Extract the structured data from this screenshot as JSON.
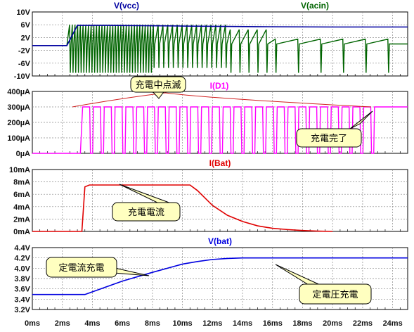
{
  "panels": [
    {
      "id": "voltage",
      "ylabels": [
        "10V",
        "6V",
        "2V",
        "-2V",
        "-6V",
        "-10V"
      ],
      "yticks": [
        10,
        6,
        2,
        -2,
        -6,
        -10
      ],
      "ylim": [
        -10,
        10
      ],
      "traces": [
        {
          "title": "V(vcc)",
          "color": "#0000a0"
        },
        {
          "title": "V(acin)",
          "color": "#006400"
        }
      ]
    },
    {
      "id": "led",
      "ylabels": [
        "400µA",
        "300µA",
        "200µA",
        "100µA",
        "0µA"
      ],
      "yticks": [
        400,
        300,
        200,
        100,
        0
      ],
      "ylim": [
        0,
        400
      ],
      "traces": [
        {
          "title": "I(D1)",
          "color": "#ff00ff"
        }
      ]
    },
    {
      "id": "battery_current",
      "ylabels": [
        "10mA",
        "8mA",
        "6mA",
        "4mA",
        "2mA",
        "0mA"
      ],
      "yticks": [
        10,
        8,
        6,
        4,
        2,
        0
      ],
      "ylim": [
        0,
        10
      ],
      "traces": [
        {
          "title": "I(Bat)",
          "color": "#e00000"
        }
      ]
    },
    {
      "id": "battery_voltage",
      "ylabels": [
        "4.4V",
        "4.2V",
        "4.0V",
        "3.8V",
        "3.6V",
        "3.4V",
        "3.2V"
      ],
      "yticks": [
        4.4,
        4.2,
        4.0,
        3.8,
        3.6,
        3.4,
        3.2
      ],
      "ylim": [
        3.2,
        4.4
      ],
      "traces": [
        {
          "title": "V(bat)",
          "color": "#0000e0"
        }
      ]
    }
  ],
  "xaxis": {
    "labels": [
      "0ms",
      "2ms",
      "4ms",
      "6ms",
      "8ms",
      "10ms",
      "12ms",
      "14ms",
      "16ms",
      "18ms",
      "20ms",
      "22ms",
      "24ms"
    ],
    "ticks": [
      0,
      2,
      4,
      6,
      8,
      10,
      12,
      14,
      16,
      18,
      20,
      22,
      24
    ],
    "xlim": [
      0,
      25
    ]
  },
  "annotations": {
    "blink": "充電中点滅",
    "complete": "充電完了",
    "current": "充電電流",
    "cc": "定電流充電",
    "cv": "定電圧充電"
  },
  "chart_data": [
    {
      "type": "line",
      "xlabel": "",
      "ylabel": "",
      "xlim": [
        0,
        25
      ],
      "ylim": [
        -10,
        10
      ],
      "grid": true,
      "series": [
        {
          "name": "V(vcc)",
          "x": [
            0,
            2.3,
            3.0,
            5,
            10,
            15,
            20,
            25
          ],
          "values": [
            -0.5,
            -0.5,
            5.8,
            5.8,
            5.6,
            5.4,
            5.3,
            5.3
          ]
        },
        {
          "name": "V(acin)",
          "x": [
            0,
            2.3,
            3.0,
            10,
            20,
            25
          ],
          "values": [
            -0.5,
            -0.5,
            0,
            0,
            0,
            0
          ],
          "note_range": [
            -9,
            6
          ]
        }
      ]
    },
    {
      "type": "line",
      "xlabel": "",
      "ylabel": "",
      "xlim": [
        0,
        25
      ],
      "ylim": [
        0,
        400
      ],
      "grid": true,
      "series": [
        {
          "name": "I(D1)",
          "x": [
            0,
            3.2,
            3.4,
            22.5,
            25
          ],
          "values": [
            0,
            0,
            300,
            300,
            300
          ],
          "note": "square wave 0-300 µA from 3.2 ms to 22.5 ms, then constant 300 µA"
        }
      ]
    },
    {
      "type": "line",
      "xlabel": "",
      "ylabel": "",
      "xlim": [
        0,
        25
      ],
      "ylim": [
        0,
        10
      ],
      "grid": true,
      "series": [
        {
          "name": "I(Bat)",
          "x": [
            0,
            3.3,
            3.5,
            3.8,
            10.5,
            11,
            12,
            13,
            14,
            15,
            16,
            17,
            18,
            19,
            20
          ],
          "values": [
            0,
            0,
            7.2,
            7.5,
            7.5,
            6.6,
            4.2,
            2.6,
            1.6,
            0.9,
            0.5,
            0.3,
            0.15,
            0.05,
            0.0
          ]
        }
      ]
    },
    {
      "type": "line",
      "xlabel": "",
      "ylabel": "",
      "xlim": [
        0,
        25
      ],
      "ylim": [
        3.2,
        4.4
      ],
      "grid": true,
      "series": [
        {
          "name": "V(bat)",
          "x": [
            0,
            3.5,
            6,
            8,
            10,
            11,
            12,
            13,
            14,
            25
          ],
          "values": [
            3.49,
            3.49,
            3.75,
            3.92,
            4.08,
            4.13,
            4.17,
            4.19,
            4.2,
            4.2
          ]
        }
      ]
    }
  ]
}
